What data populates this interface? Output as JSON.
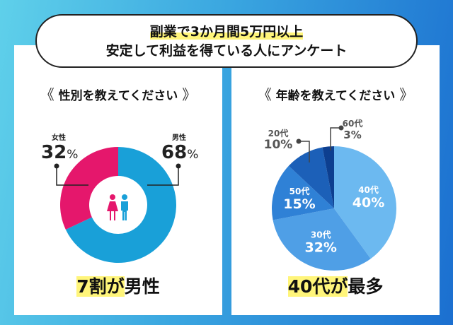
{
  "title": {
    "line1": "副業で3か月間5万円以上",
    "line2": "安定して利益を得ている人にアンケート"
  },
  "brackets": {
    "left": "《",
    "right": "》"
  },
  "chart_data": [
    {
      "type": "pie",
      "title": "性別を教えてください",
      "donut": true,
      "categories": [
        "男性",
        "女性"
      ],
      "values": [
        68,
        32
      ],
      "colors": [
        "#19a0d8",
        "#e5176c"
      ],
      "labels": [
        {
          "name": "男性",
          "value": "68",
          "unit": "%"
        },
        {
          "name": "女性",
          "value": "32",
          "unit": "%"
        }
      ],
      "conclusion_highlight": "7割が",
      "conclusion_rest": "男性"
    },
    {
      "type": "pie",
      "title": "年齢を教えてください",
      "categories": [
        "40代",
        "30代",
        "50代",
        "20代",
        "60代"
      ],
      "values": [
        40,
        32,
        15,
        10,
        3
      ],
      "colors": [
        "#6cb9f0",
        "#4f9fe6",
        "#2f81d6",
        "#1c60b8",
        "#0d3f90"
      ],
      "display": [
        "40%",
        "32%",
        "15%",
        "10%",
        "3%"
      ],
      "conclusion_highlight": "40代が",
      "conclusion_rest": "最多"
    }
  ]
}
